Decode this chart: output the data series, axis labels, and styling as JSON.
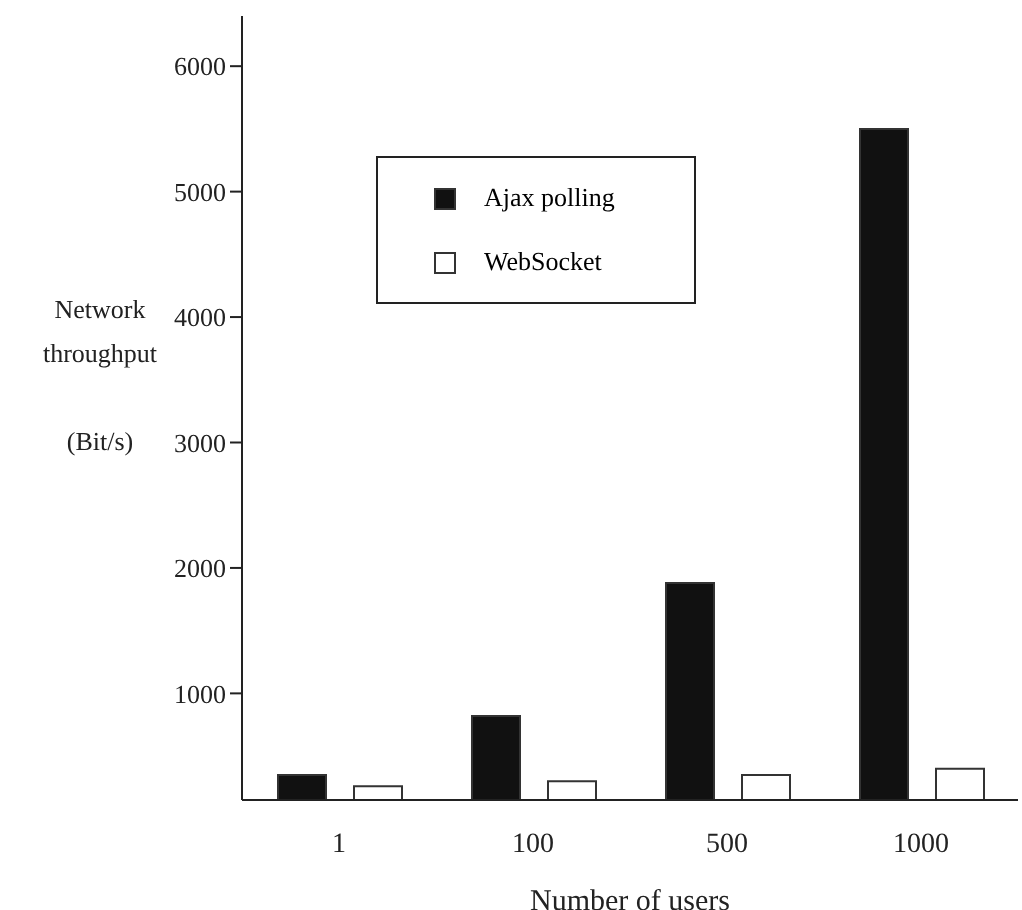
{
  "chart_data": {
    "type": "bar",
    "xlabel": "Number of users",
    "ylabel": "Network throughput (Bit/s)",
    "categories": [
      "1",
      "100",
      "500",
      "1000"
    ],
    "series": [
      {
        "name": "Ajax polling",
        "color": "#111111",
        "values": [
          350,
          820,
          1880,
          5500
        ]
      },
      {
        "name": "WebSocket",
        "color": "#ffffff",
        "values": [
          260,
          300,
          350,
          400
        ]
      }
    ],
    "ylim": [
      150,
      6400
    ],
    "yticks": [
      1000,
      2000,
      3000,
      4000,
      5000,
      6000
    ],
    "grid": false,
    "legend": "top left"
  }
}
